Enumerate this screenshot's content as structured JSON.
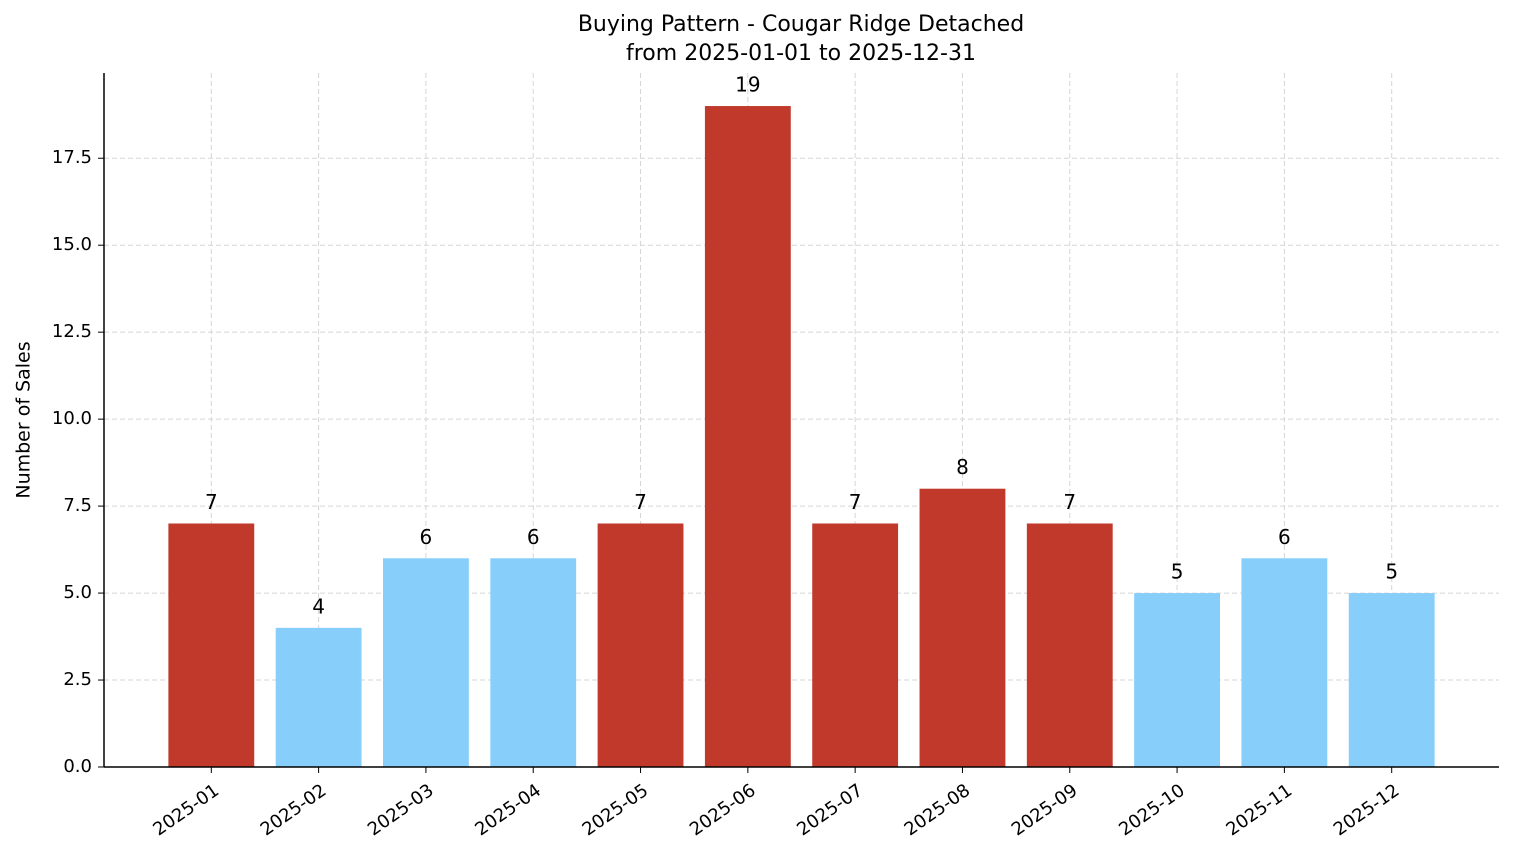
{
  "chart_data": {
    "type": "bar",
    "title": "Buying Pattern - Cougar Ridge Detached",
    "subtitle": "from 2025-01-01 to 2025-12-31",
    "y_label": "Number of Sales",
    "categories": [
      "2025-01",
      "2025-02",
      "2025-03",
      "2025-04",
      "2025-05",
      "2025-06",
      "2025-07",
      "2025-08",
      "2025-09",
      "2025-10",
      "2025-11",
      "2025-12"
    ],
    "values": [
      7,
      4,
      6,
      6,
      7,
      19,
      7,
      8,
      7,
      5,
      6,
      5
    ],
    "colors": [
      "#c0392b",
      "#87cefa",
      "#87cefa",
      "#87cefa",
      "#c0392b",
      "#c0392b",
      "#c0392b",
      "#c0392b",
      "#c0392b",
      "#87cefa",
      "#87cefa",
      "#87cefa"
    ],
    "ylim": [
      0,
      19.95
    ],
    "yticks": [
      {
        "value": 0,
        "label": "0.0"
      },
      2.5,
      {
        "value": 5,
        "label": "5.0"
      },
      7.5,
      {
        "value": 10,
        "label": "10.0"
      },
      12.5,
      {
        "value": 15,
        "label": "15.0"
      },
      17.5
    ],
    "grid": true
  }
}
